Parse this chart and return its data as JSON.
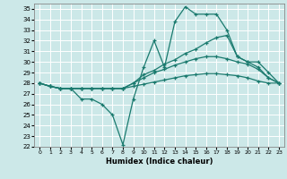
{
  "xlabel": "Humidex (Indice chaleur)",
  "bg_color": "#cce8e8",
  "grid_color": "#ffffff",
  "line_color": "#1a7a6e",
  "xlim": [
    -0.5,
    23.5
  ],
  "ylim": [
    22,
    35.5
  ],
  "xticks": [
    0,
    1,
    2,
    3,
    4,
    5,
    6,
    7,
    8,
    9,
    10,
    11,
    12,
    13,
    14,
    15,
    16,
    17,
    18,
    19,
    20,
    21,
    22,
    23
  ],
  "yticks": [
    22,
    23,
    24,
    25,
    26,
    27,
    28,
    29,
    30,
    31,
    32,
    33,
    34,
    35
  ],
  "series": [
    [
      28.0,
      27.7,
      27.5,
      27.5,
      26.5,
      26.5,
      26.0,
      25.0,
      22.2,
      26.5,
      29.5,
      32.0,
      29.5,
      33.8,
      35.2,
      34.5,
      34.5,
      34.5,
      33.0,
      30.5,
      30.0,
      30.0,
      29.0,
      28.0
    ],
    [
      28.0,
      27.7,
      27.5,
      27.5,
      27.5,
      27.5,
      27.5,
      27.5,
      27.5,
      28.0,
      28.8,
      29.2,
      29.8,
      30.2,
      30.8,
      31.2,
      31.8,
      32.3,
      32.5,
      30.5,
      30.0,
      29.5,
      28.5,
      28.0
    ],
    [
      28.0,
      27.7,
      27.5,
      27.5,
      27.5,
      27.5,
      27.5,
      27.5,
      27.5,
      28.0,
      28.5,
      29.0,
      29.3,
      29.7,
      30.0,
      30.3,
      30.5,
      30.5,
      30.3,
      30.0,
      29.8,
      29.3,
      28.5,
      28.0
    ],
    [
      28.0,
      27.7,
      27.5,
      27.5,
      27.5,
      27.5,
      27.5,
      27.5,
      27.5,
      27.7,
      27.9,
      28.1,
      28.3,
      28.5,
      28.7,
      28.8,
      28.9,
      28.9,
      28.8,
      28.7,
      28.5,
      28.2,
      28.0,
      28.0
    ]
  ]
}
